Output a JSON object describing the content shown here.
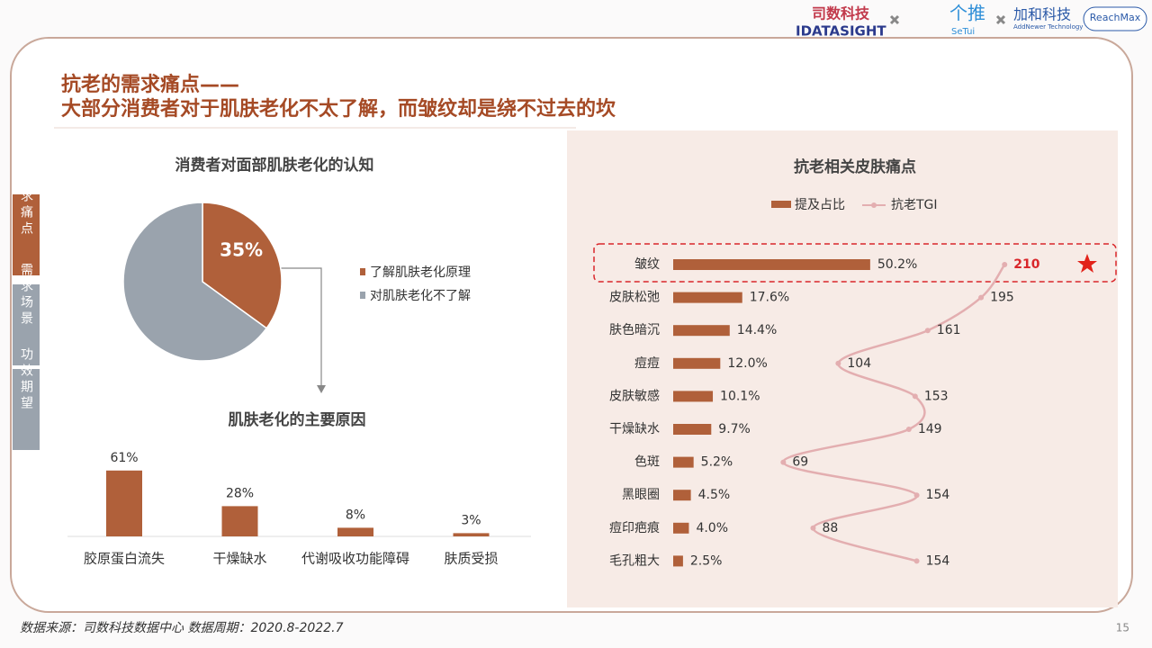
{
  "header": {
    "title_line1": "抗老的需求痛点——",
    "title_line2": "大部分消费者对于肌肤老化不太了解，而皱纹却是绕不过去的坎"
  },
  "logos": {
    "brand1": "司数科技",
    "brand1_en": "IDATASIGHT",
    "brand2": "个推",
    "brand2_en": "SeTui",
    "brand3": "加和科技",
    "brand3_en": "AddNewer Technology",
    "brand4": "ReachMax"
  },
  "sidebar": [
    "需求痛点",
    "需求场景",
    "功效期望"
  ],
  "footer": {
    "source": "数据来源：司数科技数据中心    数据周期：2020.8-2022.7",
    "page": "15"
  },
  "chart_data": [
    {
      "type": "pie",
      "title": "消费者对面部肌肤老化的认知",
      "categories": [
        "了解肌肤老化原理",
        "对肌肤老化不了解"
      ],
      "values": [
        35,
        65
      ],
      "value_labels": [
        "35%",
        null
      ],
      "colors": [
        "#b0603a",
        "#9aa3ad"
      ]
    },
    {
      "type": "bar",
      "title": "肌肤老化的主要原因",
      "categories": [
        "胶原蛋白流失",
        "干燥缺水",
        "代谢吸收功能障碍",
        "肤质受损"
      ],
      "values": [
        61,
        28,
        8,
        3
      ],
      "value_labels": [
        "61%",
        "28%",
        "8%",
        "3%"
      ],
      "color": "#b0603a"
    },
    {
      "type": "hbar_line",
      "title": "抗老相关皮肤痛点",
      "categories": [
        "皱纹",
        "皮肤松弛",
        "肤色暗沉",
        "痘痘",
        "皮肤敏感",
        "干燥缺水",
        "色斑",
        "黑眼圈",
        "痘印疤痕",
        "毛孔粗大"
      ],
      "xlim": [
        0,
        100
      ],
      "x2lim": [
        0,
        250
      ],
      "series": [
        {
          "name": "提及占比",
          "color": "#b0603a",
          "values": [
            50.2,
            17.6,
            14.4,
            12.0,
            10.1,
            9.7,
            5.2,
            4.5,
            4.0,
            2.5
          ],
          "value_labels": [
            "50.2%",
            "17.6%",
            "14.4%",
            "12.0%",
            "10.1%",
            "9.7%",
            "5.2%",
            "4.5%",
            "4.0%",
            "2.5%"
          ]
        },
        {
          "name": "抗老TGI",
          "color": "#e3aeb0",
          "axis": "x2",
          "values": [
            210,
            195,
            161,
            104,
            153,
            149,
            69,
            154,
            88,
            154
          ]
        }
      ]
    }
  ]
}
